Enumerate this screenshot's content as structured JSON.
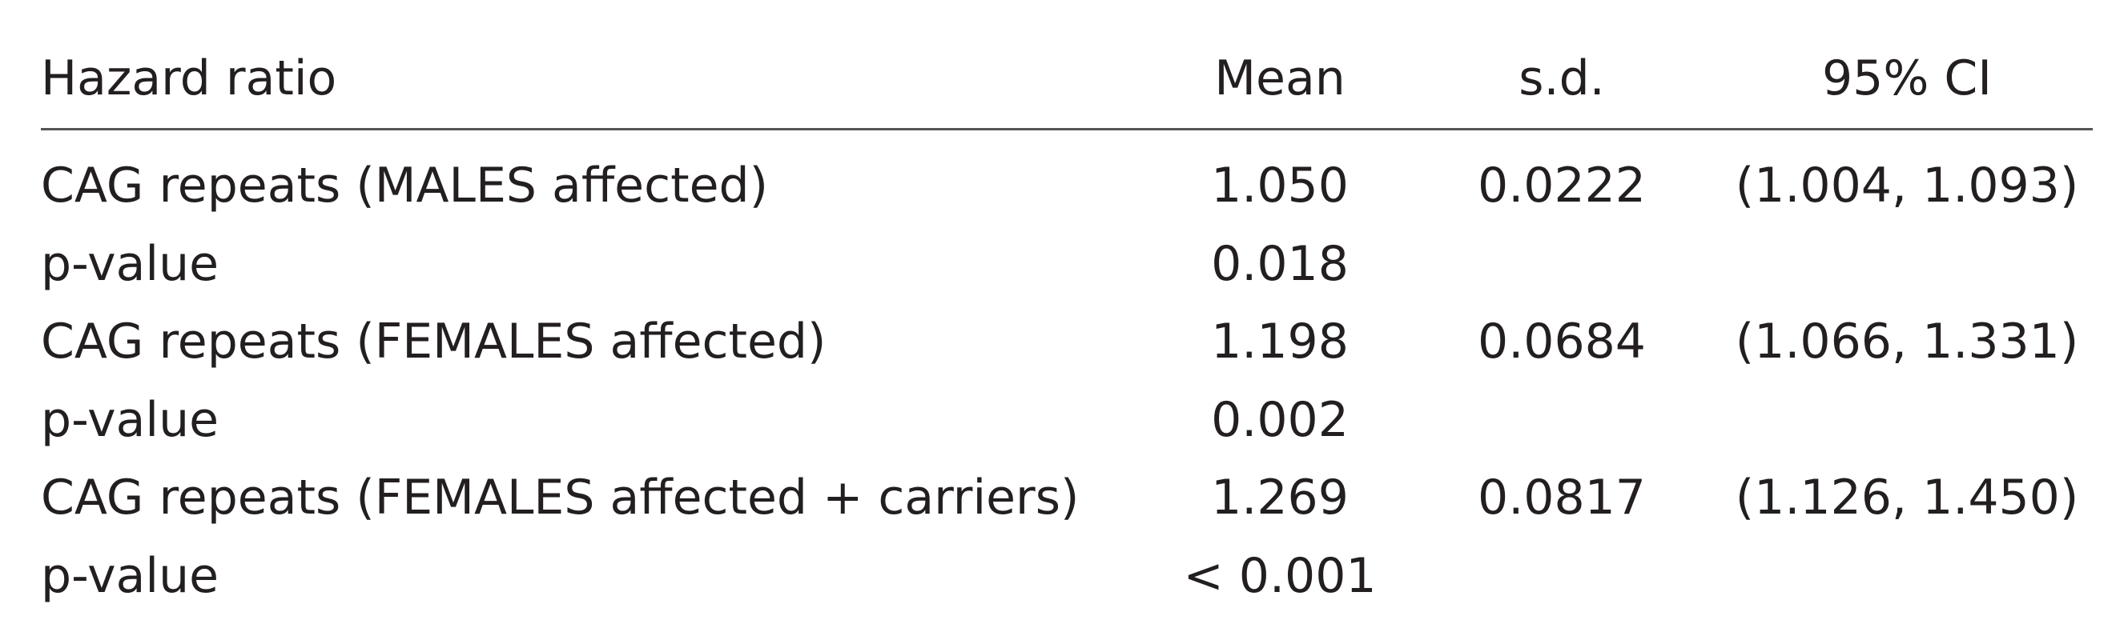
{
  "table": {
    "header": {
      "label": "Hazard ratio",
      "mean": "Mean",
      "sd": "s.d.",
      "ci": "95% CI"
    },
    "rows": [
      {
        "label": "CAG repeats (MALES affected)",
        "mean": "1.050",
        "sd": "0.0222",
        "ci": "(1.004, 1.093)"
      },
      {
        "label": "p-value",
        "mean": "0.018"
      },
      {
        "label": "CAG repeats (FEMALES affected)",
        "mean": "1.198",
        "sd": "0.0684",
        "ci": "(1.066, 1.331)"
      },
      {
        "label": "p-value",
        "mean": "0.002"
      },
      {
        "label": "CAG repeats (FEMALES affected + carriers)",
        "mean": "1.269",
        "sd": "0.0817",
        "ci": "(1.126, 1.450)"
      },
      {
        "label": "p-value",
        "mean": "< 0.001"
      }
    ]
  }
}
